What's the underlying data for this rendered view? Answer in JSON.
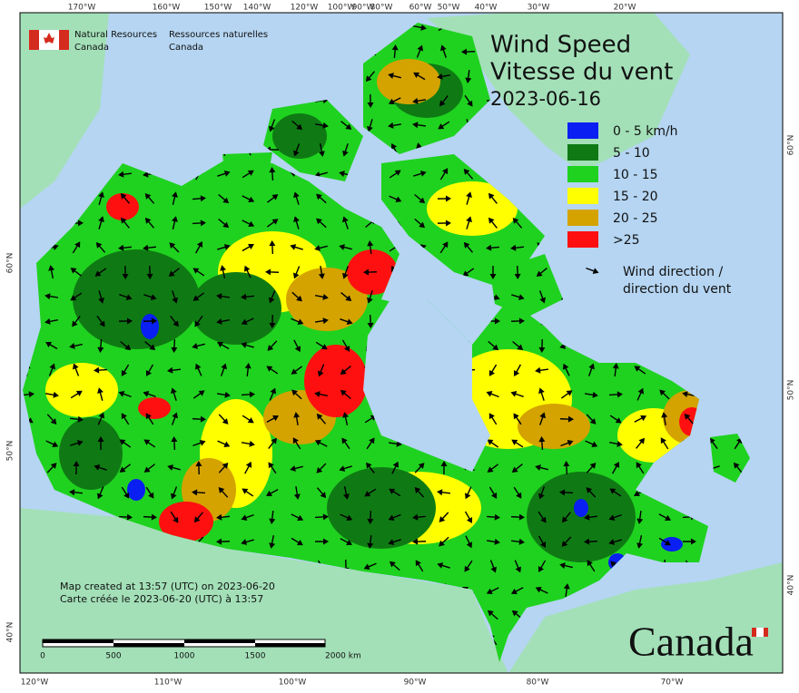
{
  "header": {
    "org_en": [
      "Natural Resources",
      "Canada"
    ],
    "org_fr": [
      "Ressources naturelles",
      "Canada"
    ]
  },
  "title": {
    "line1": "Wind Speed",
    "line2": "Vitesse du vent",
    "date": "2023-06-16"
  },
  "legend": {
    "items": [
      {
        "label": "0 - 5 km/h",
        "color": "#0a1ff2"
      },
      {
        "label": "5 - 10",
        "color": "#0f7a14"
      },
      {
        "label": "10 - 15",
        "color": "#1fd21f"
      },
      {
        "label": "15 - 20",
        "color": "#ffff00"
      },
      {
        "label": "20 - 25",
        "color": "#d4a300"
      },
      {
        "label": ">25",
        "color": "#ff1010"
      }
    ],
    "direction": [
      "Wind direction /",
      "direction du vent"
    ]
  },
  "notes": [
    "Map created at 13:57 (UTC) on 2023-06-20",
    "Carte créée le 2023-06-20 (UTC) à 13:57"
  ],
  "scale_bar": [
    "0",
    "500",
    "1000",
    "1500",
    "2000  km"
  ],
  "graticule": {
    "top": [
      "170°W",
      "160°W",
      "150°W",
      "140°W",
      "120°W",
      "100°W",
      "90°W",
      "80°W",
      "60°W",
      "50°W",
      "40°W",
      "30°W",
      "20°W"
    ],
    "bottom": [
      "120°W",
      "110°W",
      "100°W",
      "90°W",
      "80°W",
      "70°W"
    ],
    "left": [
      "60°N",
      "50°N",
      "40°N"
    ],
    "right": [
      "60°N",
      "50°N",
      "40°N"
    ]
  },
  "wordmark": "Canada"
}
